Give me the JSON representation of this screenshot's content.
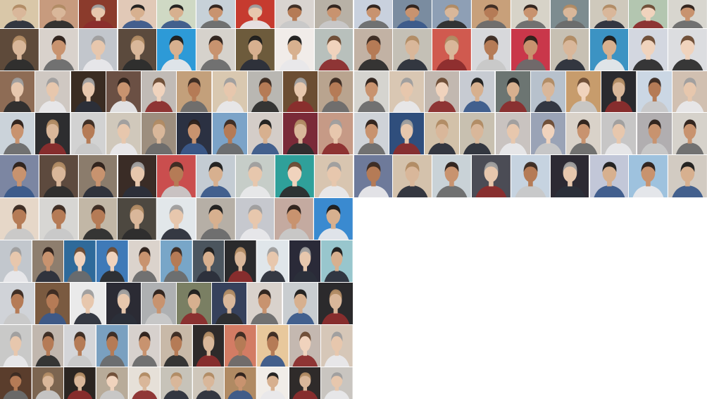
{
  "mosaic": {
    "description_visible_text": "",
    "rows": [
      {
        "tiles": [
          "#d9c7a8",
          "#c79b7e",
          "#8b3b2c",
          "#e1c9b7",
          "#cfd9c4",
          "#c7d1d8",
          "#c63b2f",
          "#d9d4d0",
          "#b8b1a6",
          "#c9d1de",
          "#7a8ca0",
          "#8e9fb5",
          "#c8a07a",
          "#d7d3c8",
          "#7d8c90",
          "#cfc9bc",
          "#b3c6b0",
          "#d8d6cf"
        ]
      },
      {
        "tiles": [
          "#5e4a3a",
          "#d9d2cc",
          "#c2c6cc",
          "#5b4a3d",
          "#2d9ad7",
          "#d6d2cc",
          "#6d5b3c",
          "#f1ece9",
          "#b8c0bc",
          "#c2b2a4",
          "#c4c0b6",
          "#d05a4f",
          "#d7d8db",
          "#c9374a",
          "#c7c0b3",
          "#3c93c3",
          "#d3d7e0",
          "#dcdde0"
        ]
      },
      {
        "tiles": [
          "#8e6c55",
          "#cfc8c2",
          "#3a2c22",
          "#6b5044",
          "#c1bbb6",
          "#c3a07b",
          "#d9c8b0",
          "#b9b7b2",
          "#6b4d32",
          "#b9a48f",
          "#d5d4cf",
          "#d9c7b3",
          "#c2b8b0",
          "#c7cbd2",
          "#6c7572",
          "#b7c1cc",
          "#c79c6c",
          "#2a2a2e",
          "#cbd7e4",
          "#d1c0b1"
        ]
      },
      {
        "tiles": [
          "#cbd3da",
          "#2d2d2f",
          "#d2d2d2",
          "#d0c8bb",
          "#9d8e7e",
          "#2b3142",
          "#7ba3c8",
          "#d4cdc8",
          "#7a2a38",
          "#c69a86",
          "#cfd3d8",
          "#2f4e7c",
          "#d2c1a9",
          "#c8c0b0",
          "#c9c3c0",
          "#9aa3b6",
          "#d9d2c9",
          "#c7c6c6",
          "#b1aeb0",
          "#d6d2cb"
        ]
      },
      {
        "tiles": [
          "#7c86a2",
          "#5d4a3e",
          "#8b7c6c",
          "#3a2c26",
          "#ca4e4e",
          "#c4ccd3",
          "#c6cdc8",
          "#2fa09a",
          "#d8c5b0",
          "#6e7a9a",
          "#d4c2ac",
          "#c9d2d7",
          "#4b4c55",
          "#c6d3e0",
          "#2d2a33",
          "#c2c7d8",
          "#9ec2de",
          "#d2cbc2"
        ]
      },
      {
        "tiles": [
          "#e6d7c8",
          "#d7d6d3",
          "#c2b7a6",
          "#4d4840",
          "#e2e7ea",
          "#b6afa6",
          "#c6c8ce",
          "#c4aaa0",
          "#3a8ad0"
        ]
      },
      {
        "tiles": [
          "#c2c7cd",
          "#8e7e6e",
          "#2f6a9a",
          "#3f7ab8",
          "#dbd3cc",
          "#78a6c8",
          "#4b555e",
          "#2a2a2c",
          "#e0e6ea",
          "#2a2a38",
          "#98c6cd"
        ]
      },
      {
        "tiles": [
          "#d0d3d8",
          "#7a5a40",
          "#eaeaea",
          "#2b2b34",
          "#aeb0b2",
          "#7a7f63",
          "#36415c",
          "#d9d2cc",
          "#c9cdd0",
          "#2b2a2c"
        ]
      },
      {
        "tiles": [
          "#c9c9c8",
          "#c1b7ae",
          "#d4d5d8",
          "#7aa0c0",
          "#d7d1cd",
          "#c8b9a8",
          "#2e2a2a",
          "#d37c64",
          "#e8c89c",
          "#c4b8b0",
          "#d6c7b8"
        ]
      },
      {
        "tiles": [
          "#5a3d2c",
          "#7c6550",
          "#2b2521",
          "#b8ab99",
          "#e6e0d8",
          "#c7c3b9",
          "#cfc7bb",
          "#b08a63",
          "#f1ede8",
          "#2f2b2a",
          "#c9c5c0"
        ]
      }
    ]
  }
}
